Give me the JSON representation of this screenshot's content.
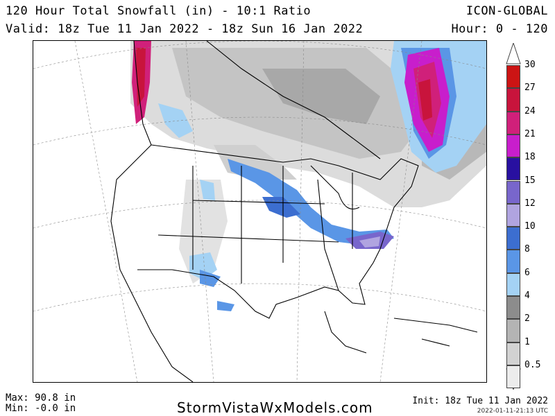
{
  "header": {
    "title": "120 Hour Total Snowfall (in) - 10:1 Ratio",
    "valid": "Valid: 18z Tue 11 Jan 2022 - 18z Sun 16 Jan 2022",
    "model": "ICON-GLOBAL",
    "hour": "Hour: 0 - 120"
  },
  "legend": {
    "units": "in",
    "levels": [
      {
        "label": "30",
        "color": "#cc1414"
      },
      {
        "label": "27",
        "color": "#c8143c"
      },
      {
        "label": "24",
        "color": "#d0207a"
      },
      {
        "label": "21",
        "color": "#c81ecc"
      },
      {
        "label": "18",
        "color": "#2810a0"
      },
      {
        "label": "15",
        "color": "#7866cc"
      },
      {
        "label": "12",
        "color": "#b0a4e0"
      },
      {
        "label": "10",
        "color": "#3c6ed0"
      },
      {
        "label": "8",
        "color": "#5a96e6"
      },
      {
        "label": "6",
        "color": "#a4d2f4"
      },
      {
        "label": "4",
        "color": "#8c8c8c"
      },
      {
        "label": "2",
        "color": "#b4b4b4"
      },
      {
        "label": "1",
        "color": "#d2d2d2"
      },
      {
        "label": "0.5",
        "color": "#ececec"
      }
    ]
  },
  "footer": {
    "max": "Max: 90.8 in",
    "min": "Min: -0.0 in",
    "site": "StormVistaWxModels.com",
    "init": "Init: 18z Tue 11 Jan 2022",
    "stamp": "2022-01-11-21:13 UTC"
  }
}
